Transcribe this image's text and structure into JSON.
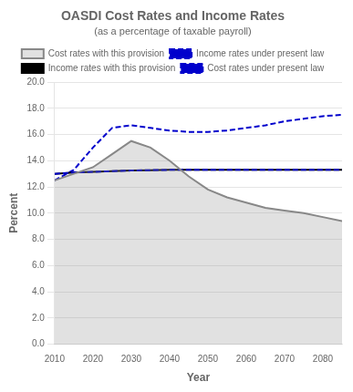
{
  "chart_data": {
    "type": "line",
    "title": "OASDI Cost Rates and Income Rates",
    "subtitle": "(as a percentage of taxable payroll)",
    "xlabel": "Year",
    "ylabel": "Percent",
    "x": [
      2010,
      2015,
      2020,
      2025,
      2030,
      2035,
      2040,
      2045,
      2050,
      2055,
      2060,
      2065,
      2070,
      2075,
      2080,
      2085
    ],
    "series": [
      {
        "name": "Cost rates with this provision",
        "type": "area",
        "color": "#888888",
        "line_style": "solid",
        "marker": "none",
        "values": [
          12.5,
          13.0,
          13.5,
          14.5,
          15.5,
          15.0,
          14.0,
          12.8,
          11.8,
          11.2,
          10.8,
          10.4,
          10.2,
          10.0,
          9.7,
          9.4
        ]
      },
      {
        "name": "Income rates under present law",
        "type": "line",
        "color": "#0000cc",
        "line_style": "dashed",
        "marker": "none",
        "values": [
          13.0,
          13.1,
          13.15,
          13.2,
          13.25,
          13.28,
          13.3,
          13.3,
          13.3,
          13.3,
          13.3,
          13.3,
          13.3,
          13.3,
          13.3,
          13.3
        ]
      },
      {
        "name": "Income rates with this provision",
        "type": "line",
        "color": "#000000",
        "line_style": "solid",
        "marker": "none",
        "values": [
          13.0,
          13.1,
          13.15,
          13.2,
          13.25,
          13.28,
          13.3,
          13.3,
          13.3,
          13.3,
          13.3,
          13.3,
          13.3,
          13.3,
          13.3,
          13.3
        ]
      },
      {
        "name": "Cost rates under present law",
        "type": "line",
        "color": "#0000cc",
        "line_style": "dashed",
        "marker": "none",
        "values": [
          12.5,
          13.3,
          15.0,
          16.5,
          16.7,
          16.5,
          16.3,
          16.2,
          16.2,
          16.3,
          16.5,
          16.7,
          17.0,
          17.2,
          17.4,
          17.5
        ]
      }
    ],
    "xlim": [
      2010,
      2085
    ],
    "xticks": [
      2010,
      2020,
      2030,
      2040,
      2050,
      2060,
      2070,
      2080
    ],
    "ylim": [
      0.0,
      20.0
    ],
    "yticks": [
      {
        "value": 0.0,
        "label": "0.0"
      },
      {
        "value": 2.0,
        "label": "2.0"
      },
      {
        "value": 4.0,
        "label": "4.0"
      },
      {
        "value": 6.0,
        "label": "6.0"
      },
      {
        "value": 8.0,
        "label": "8.0"
      },
      {
        "value": 10.0,
        "label": "10.0"
      },
      {
        "value": 12.0,
        "label": "12.0"
      },
      {
        "value": 14.0,
        "label": "14.0"
      },
      {
        "value": 16.0,
        "label": "16.0"
      },
      {
        "value": 18.0,
        "label": "18.0"
      },
      {
        "value": 20.0,
        "label": "20.0"
      }
    ],
    "grid": true,
    "legend": "top"
  }
}
